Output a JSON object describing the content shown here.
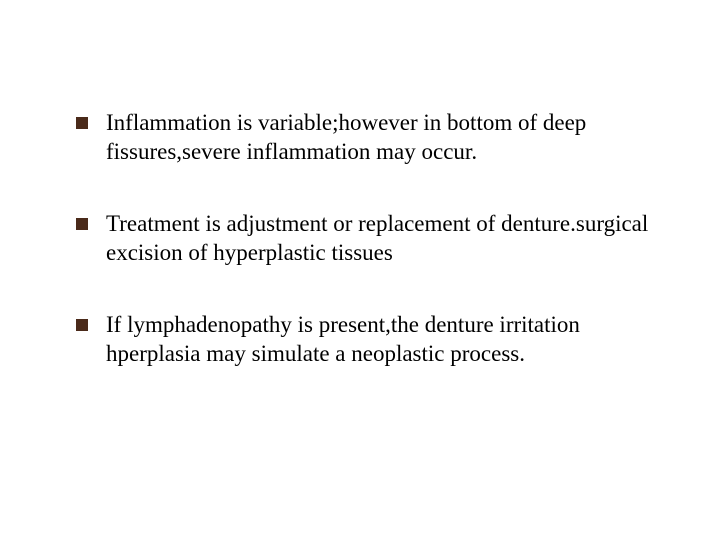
{
  "slide": {
    "background_color": "#ffffff",
    "outer_background": "#000000",
    "bullet_marker_color": "#4a2a1a",
    "bullet_marker_size": 12,
    "text_color": "#000000",
    "font_family": "Times New Roman",
    "font_size": 23,
    "line_height": 1.28,
    "bullets": [
      {
        "text": "Inflammation is variable;however in bottom of deep fissures,severe inflammation may occur."
      },
      {
        "text": "Treatment is adjustment or replacement of denture.surgical excision of hyperplastic tissues"
      },
      {
        "text": "If lymphadenopathy is present,the denture irritation hperplasia may simulate a neoplastic process."
      }
    ]
  }
}
